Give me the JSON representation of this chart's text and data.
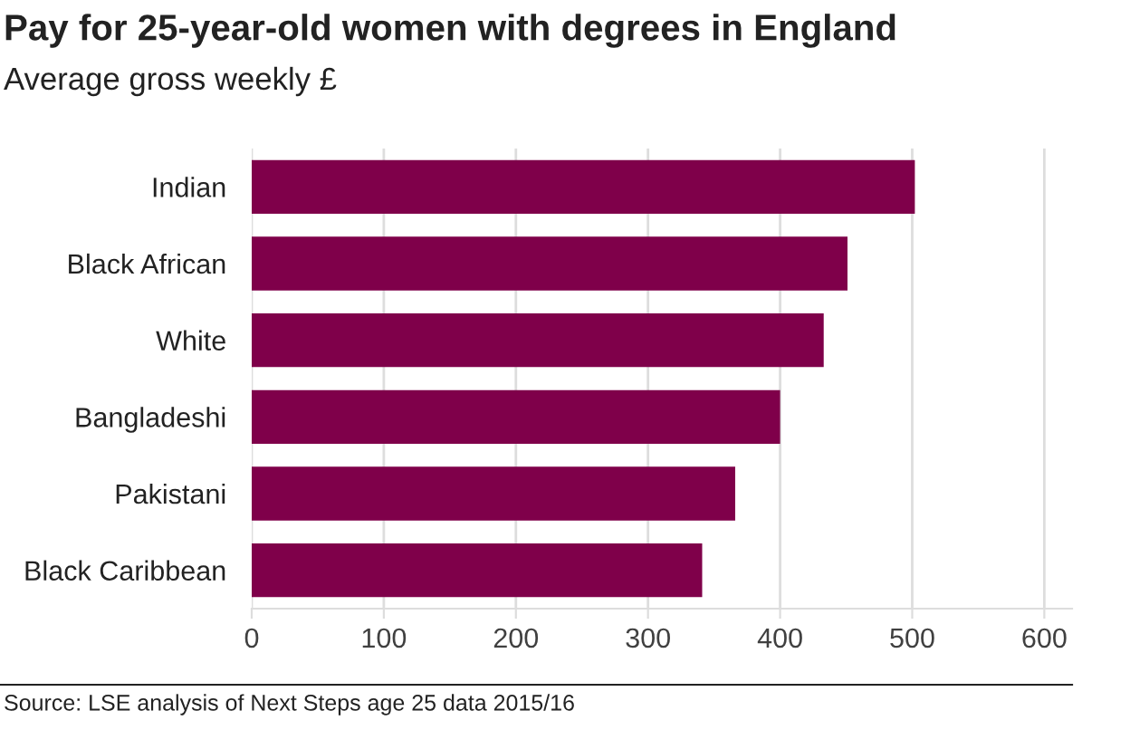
{
  "chart_data": {
    "type": "bar",
    "orientation": "horizontal",
    "title": "Pay for 25-year-old women with degrees in England",
    "subtitle": "Average gross weekly £",
    "categories": [
      "Indian",
      "Black African",
      "White",
      "Bangladeshi",
      "Pakistani",
      "Black Caribbean"
    ],
    "values": [
      502,
      451,
      433,
      400,
      366,
      341
    ],
    "color": "#7f004a",
    "xlim": [
      0,
      621
    ],
    "xticks": [
      0,
      100,
      200,
      300,
      400,
      500,
      600
    ],
    "grid": "x",
    "legend": false,
    "annotations": [
      "Source: LSE analysis of Next Steps age 25 data 2015/16"
    ]
  }
}
